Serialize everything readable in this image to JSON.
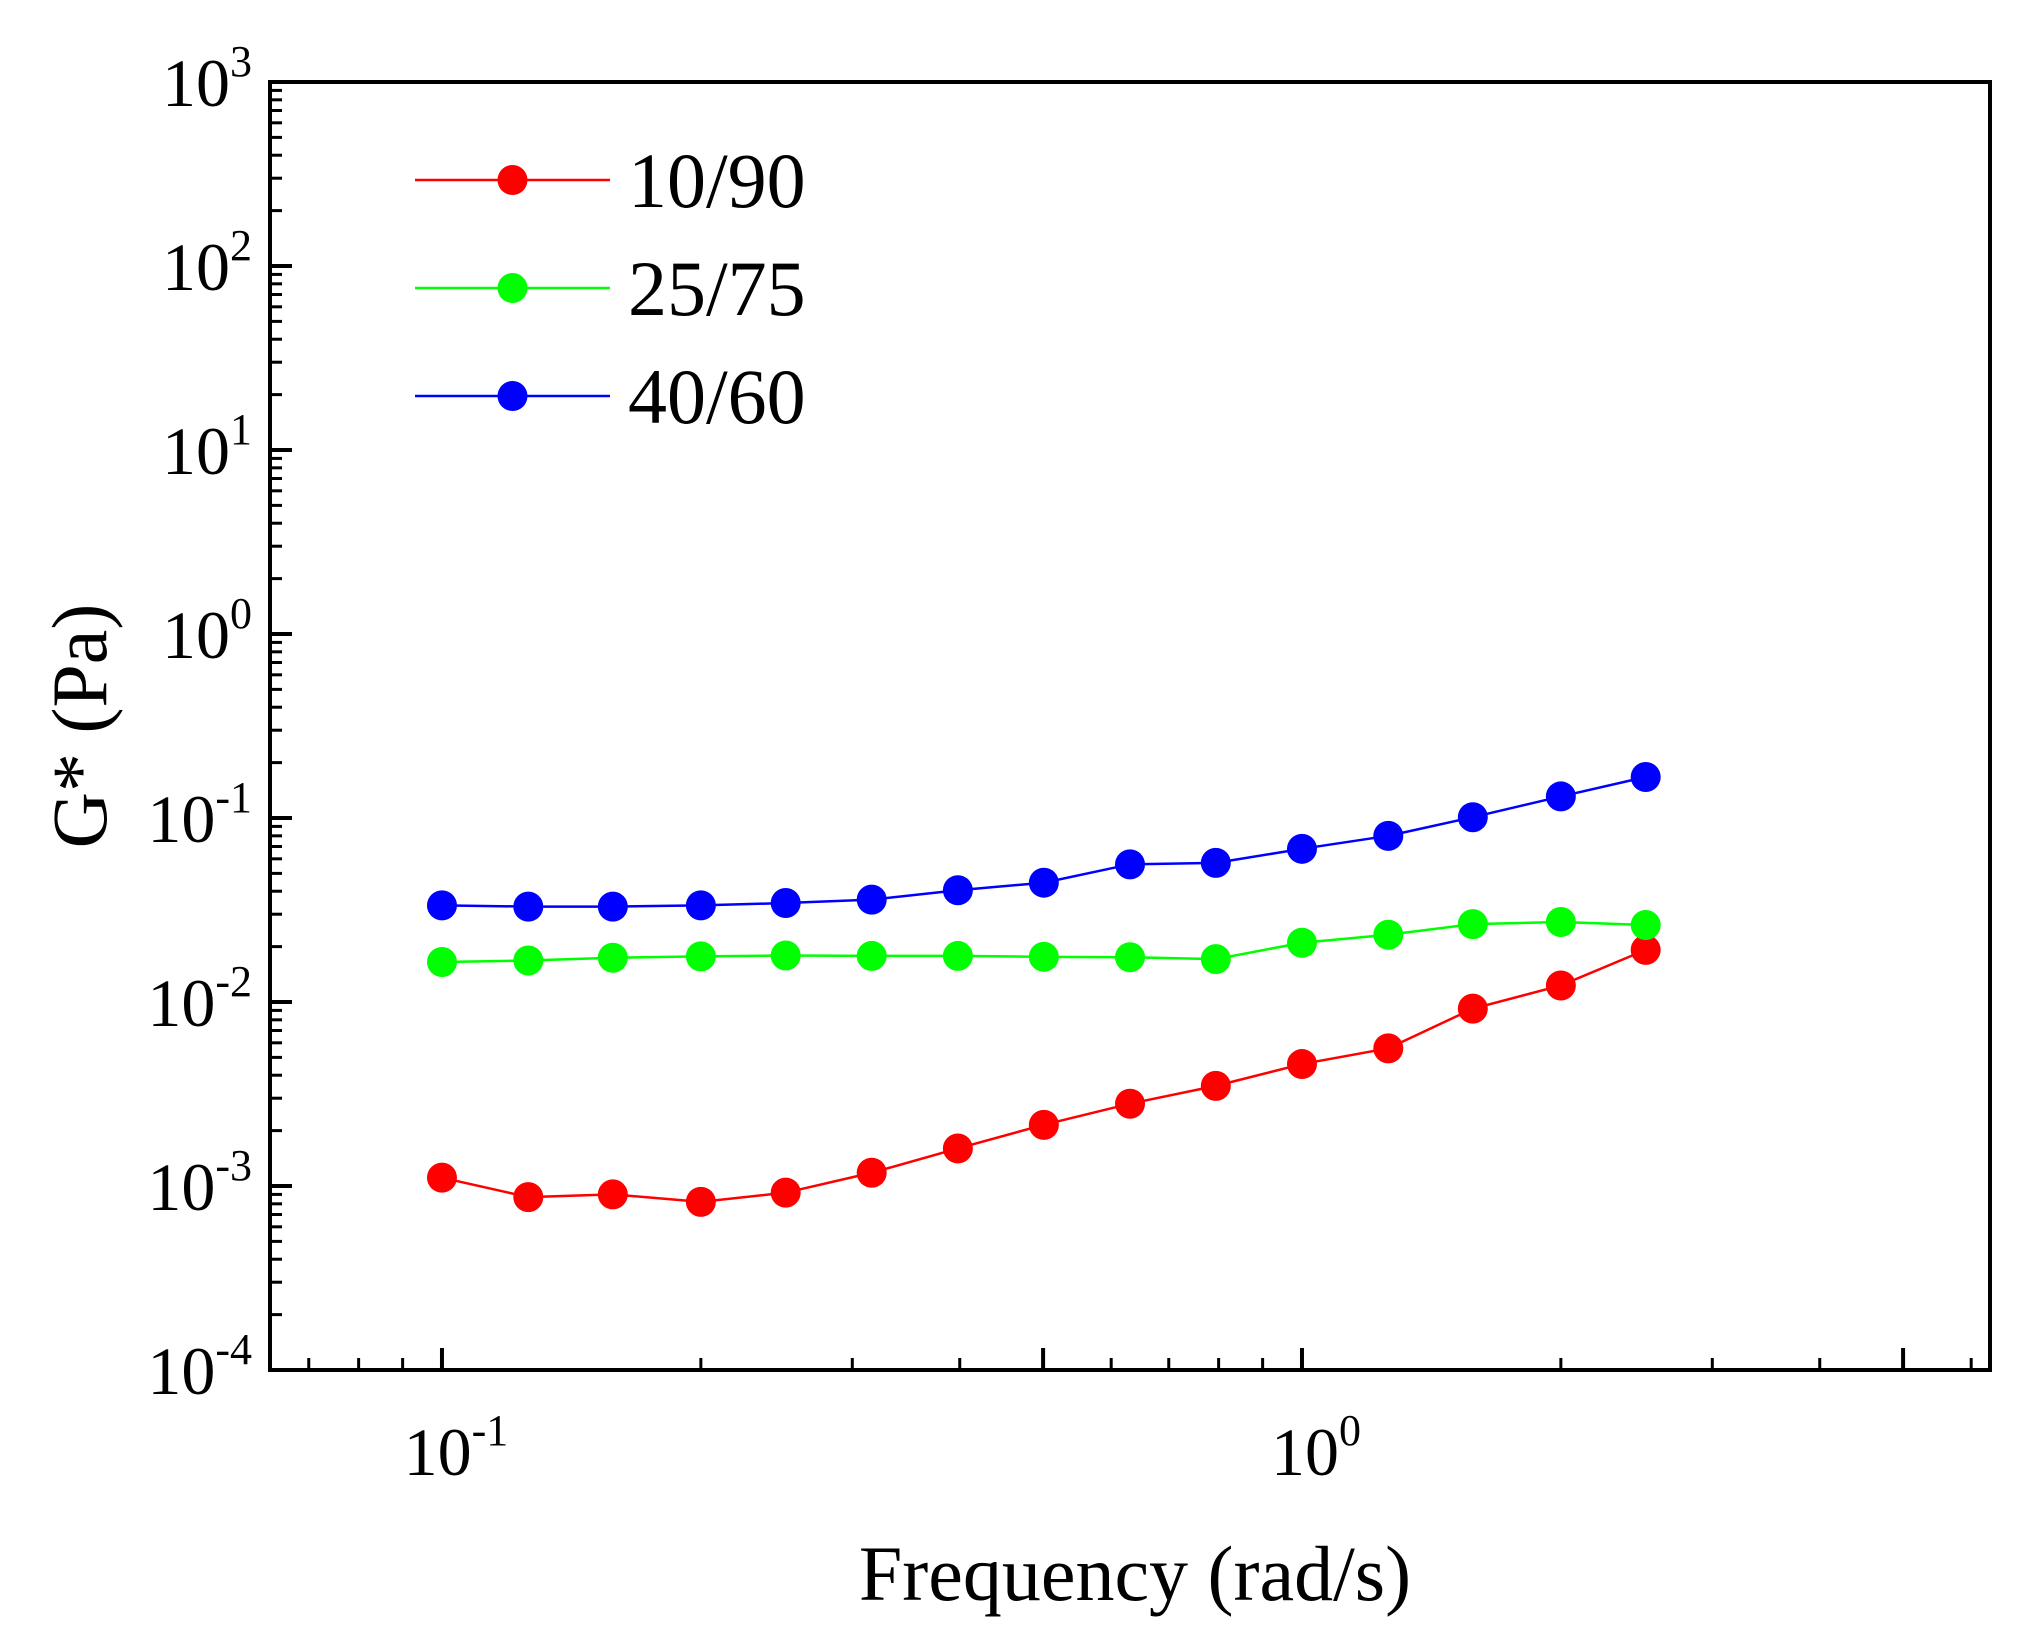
{
  "chart_data": {
    "type": "line",
    "title": "",
    "xlabel": "Frequency (rad/s)",
    "ylabel": "G* (Pa)",
    "xscale": "log",
    "yscale": "log",
    "xlim": [
      0.0631,
      6.31
    ],
    "ylim": [
      0.0001,
      1000
    ],
    "grid": false,
    "legend_position": "top-left",
    "x_tick_labels": [
      {
        "value": 0.1,
        "base": "10",
        "exp": "-1"
      },
      {
        "value": 1,
        "base": "10",
        "exp": "0"
      }
    ],
    "y_tick_labels": [
      {
        "value": 0.0001,
        "base": "10",
        "exp": "-4"
      },
      {
        "value": 0.001,
        "base": "10",
        "exp": "-3"
      },
      {
        "value": 0.01,
        "base": "10",
        "exp": "-2"
      },
      {
        "value": 0.1,
        "base": "10",
        "exp": "-1"
      },
      {
        "value": 1,
        "base": "10",
        "exp": "0"
      },
      {
        "value": 10,
        "base": "10",
        "exp": "1"
      },
      {
        "value": 100,
        "base": "10",
        "exp": "2"
      },
      {
        "value": 1000,
        "base": "10",
        "exp": "3"
      }
    ],
    "x": [
      0.1,
      0.126,
      0.158,
      0.2,
      0.251,
      0.316,
      0.398,
      0.501,
      0.631,
      0.794,
      1.0,
      1.26,
      1.58,
      2.0,
      2.51
    ],
    "series": [
      {
        "name": "10/90",
        "color": "#ff0000",
        "values": [
          0.00111,
          0.00087,
          0.0009,
          0.00082,
          0.00092,
          0.00118,
          0.0016,
          0.00215,
          0.0028,
          0.0035,
          0.0046,
          0.0056,
          0.0092,
          0.0123,
          0.0192
        ]
      },
      {
        "name": "25/75",
        "color": "#00ff00",
        "values": [
          0.0165,
          0.0168,
          0.0174,
          0.0177,
          0.0179,
          0.0178,
          0.0178,
          0.0176,
          0.0175,
          0.0171,
          0.021,
          0.0232,
          0.0265,
          0.0272,
          0.0262
        ]
      },
      {
        "name": "40/60",
        "color": "#0000ff",
        "values": [
          0.0335,
          0.033,
          0.033,
          0.0335,
          0.0345,
          0.036,
          0.0405,
          0.0445,
          0.056,
          0.057,
          0.068,
          0.08,
          0.101,
          0.131,
          0.167
        ]
      }
    ]
  }
}
